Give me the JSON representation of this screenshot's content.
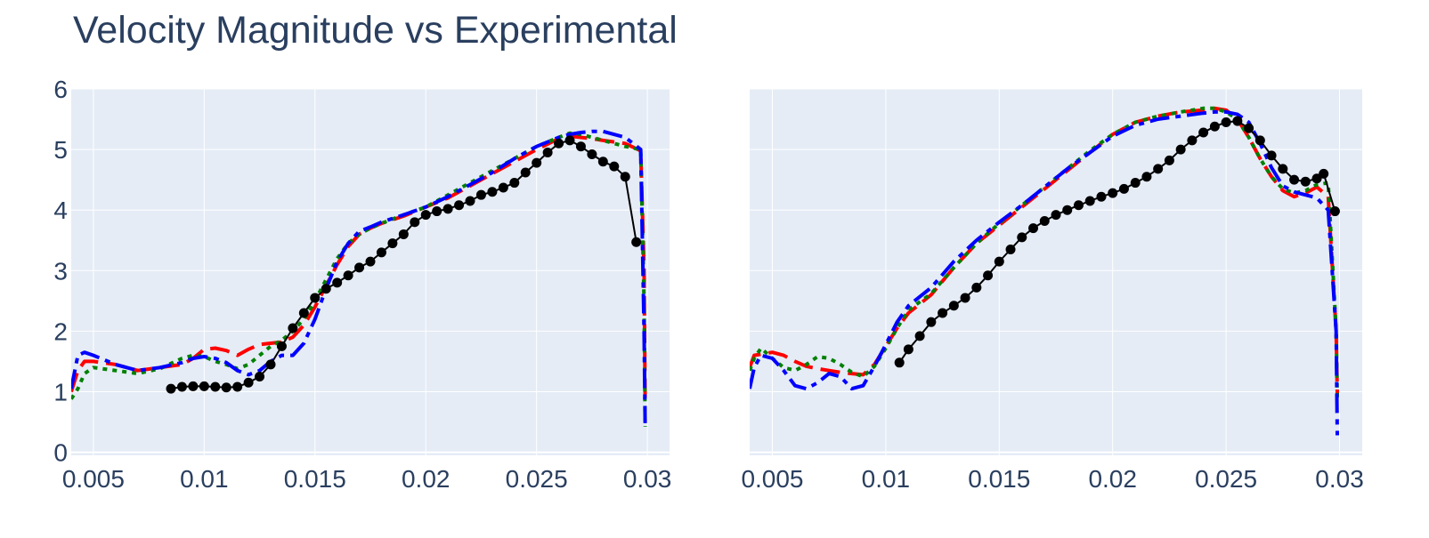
{
  "title": "Velocity Magnitude vs Experimental",
  "colors": {
    "plot_bg": "#e5ecf6",
    "grid": "#ffffff",
    "text": "#2a3f5f",
    "red": "#ff0000",
    "green": "#008000",
    "blue": "#0000ff",
    "black": "#000000"
  },
  "chart_data": [
    {
      "type": "line",
      "panel": "left",
      "title": "",
      "xlabel": "",
      "ylabel": "",
      "xlim": [
        0.004,
        0.031
      ],
      "ylim": [
        -0.05,
        6.0
      ],
      "x_ticks": [
        0.005,
        0.01,
        0.015,
        0.02,
        0.025,
        0.03
      ],
      "x_tick_labels": [
        "0.005",
        "0.01",
        "0.015",
        "0.02",
        "0.025",
        "0.03"
      ],
      "y_ticks": [
        0,
        1,
        2,
        3,
        4,
        5,
        6
      ],
      "y_tick_labels": [
        "0",
        "1",
        "2",
        "3",
        "4",
        "5",
        "6"
      ],
      "grid": true,
      "series": [
        {
          "style": "dash",
          "color": "red",
          "x": [
            0.004,
            0.0043,
            0.0046,
            0.005,
            0.006,
            0.007,
            0.008,
            0.009,
            0.0095,
            0.01,
            0.0105,
            0.011,
            0.0115,
            0.012,
            0.0125,
            0.013,
            0.0135,
            0.014,
            0.0145,
            0.015,
            0.0155,
            0.016,
            0.0165,
            0.017,
            0.0175,
            0.018,
            0.019,
            0.02,
            0.021,
            0.022,
            0.023,
            0.024,
            0.025,
            0.026,
            0.0265,
            0.027,
            0.0275,
            0.028,
            0.029,
            0.0297,
            0.02985,
            0.0299
          ],
          "y": [
            1.0,
            1.35,
            1.5,
            1.5,
            1.45,
            1.35,
            1.4,
            1.45,
            1.55,
            1.7,
            1.72,
            1.68,
            1.6,
            1.7,
            1.78,
            1.8,
            1.82,
            1.9,
            2.1,
            2.4,
            2.75,
            3.1,
            3.4,
            3.6,
            3.7,
            3.78,
            3.9,
            4.05,
            4.2,
            4.4,
            4.6,
            4.8,
            5.0,
            5.18,
            5.22,
            5.2,
            5.18,
            5.15,
            5.1,
            4.98,
            3.0,
            0.9
          ]
        },
        {
          "style": "dot",
          "color": "green",
          "x": [
            0.004,
            0.0043,
            0.0046,
            0.005,
            0.006,
            0.007,
            0.008,
            0.009,
            0.0095,
            0.01,
            0.0105,
            0.011,
            0.0115,
            0.012,
            0.0125,
            0.013,
            0.0135,
            0.014,
            0.0145,
            0.015,
            0.0155,
            0.016,
            0.0165,
            0.017,
            0.0175,
            0.018,
            0.019,
            0.02,
            0.021,
            0.022,
            0.023,
            0.024,
            0.025,
            0.026,
            0.0265,
            0.027,
            0.0275,
            0.028,
            0.029,
            0.0297,
            0.02985,
            0.0299
          ],
          "y": [
            0.88,
            1.05,
            1.3,
            1.4,
            1.35,
            1.3,
            1.38,
            1.55,
            1.6,
            1.58,
            1.5,
            1.45,
            1.38,
            1.45,
            1.6,
            1.75,
            1.85,
            2.0,
            2.2,
            2.5,
            2.85,
            3.2,
            3.45,
            3.6,
            3.7,
            3.78,
            3.92,
            4.05,
            4.25,
            4.45,
            4.65,
            4.85,
            5.05,
            5.2,
            5.27,
            5.25,
            5.2,
            5.15,
            5.05,
            5.0,
            2.5,
            0.42
          ]
        },
        {
          "style": "dashdot",
          "color": "blue",
          "x": [
            0.004,
            0.0043,
            0.0046,
            0.005,
            0.006,
            0.007,
            0.008,
            0.009,
            0.0095,
            0.01,
            0.0105,
            0.011,
            0.0115,
            0.012,
            0.0125,
            0.013,
            0.0135,
            0.014,
            0.0145,
            0.015,
            0.0155,
            0.016,
            0.0165,
            0.017,
            0.0175,
            0.018,
            0.019,
            0.02,
            0.021,
            0.022,
            0.023,
            0.024,
            0.025,
            0.026,
            0.0265,
            0.027,
            0.0275,
            0.028,
            0.029,
            0.0297,
            0.02985,
            0.0299
          ],
          "y": [
            1.05,
            1.6,
            1.65,
            1.6,
            1.45,
            1.35,
            1.4,
            1.48,
            1.55,
            1.58,
            1.55,
            1.48,
            1.35,
            1.28,
            1.35,
            1.5,
            1.6,
            1.6,
            1.8,
            2.2,
            2.7,
            3.15,
            3.45,
            3.65,
            3.72,
            3.8,
            3.92,
            4.05,
            4.22,
            4.42,
            4.62,
            4.85,
            5.05,
            5.2,
            5.25,
            5.28,
            5.3,
            5.3,
            5.2,
            5.0,
            2.0,
            0.48
          ]
        },
        {
          "style": "markers+line",
          "color": "black",
          "x": [
            0.0085,
            0.009,
            0.0095,
            0.01,
            0.0105,
            0.011,
            0.0115,
            0.012,
            0.0125,
            0.013,
            0.0135,
            0.014,
            0.0145,
            0.015,
            0.0155,
            0.016,
            0.0165,
            0.017,
            0.0175,
            0.018,
            0.0185,
            0.019,
            0.0195,
            0.02,
            0.0205,
            0.021,
            0.0215,
            0.022,
            0.0225,
            0.023,
            0.0235,
            0.024,
            0.0245,
            0.025,
            0.0255,
            0.026,
            0.0265,
            0.027,
            0.0275,
            0.028,
            0.0285,
            0.029,
            0.0295
          ],
          "y": [
            1.05,
            1.08,
            1.09,
            1.09,
            1.08,
            1.07,
            1.08,
            1.15,
            1.25,
            1.45,
            1.75,
            2.05,
            2.3,
            2.55,
            2.7,
            2.8,
            2.92,
            3.05,
            3.15,
            3.3,
            3.45,
            3.6,
            3.8,
            3.92,
            3.98,
            4.02,
            4.08,
            4.15,
            4.25,
            4.3,
            4.37,
            4.45,
            4.62,
            4.78,
            4.95,
            5.1,
            5.15,
            5.05,
            4.92,
            4.8,
            4.72,
            4.55,
            3.47
          ]
        }
      ]
    },
    {
      "type": "line",
      "panel": "right",
      "title": "",
      "xlabel": "",
      "ylabel": "",
      "xlim": [
        0.004,
        0.031
      ],
      "ylim": [
        -0.05,
        6.0
      ],
      "x_ticks": [
        0.005,
        0.01,
        0.015,
        0.02,
        0.025,
        0.03
      ],
      "x_tick_labels": [
        "0.005",
        "0.01",
        "0.015",
        "0.02",
        "0.025",
        "0.03"
      ],
      "y_ticks": [
        0,
        1,
        2,
        3,
        4,
        5,
        6
      ],
      "y_tick_labels": [],
      "grid": true,
      "series": [
        {
          "style": "dash",
          "color": "red",
          "x": [
            0.004,
            0.0042,
            0.0045,
            0.005,
            0.0055,
            0.006,
            0.0065,
            0.007,
            0.0075,
            0.008,
            0.0085,
            0.009,
            0.0095,
            0.01,
            0.0105,
            0.011,
            0.012,
            0.013,
            0.014,
            0.015,
            0.016,
            0.017,
            0.018,
            0.019,
            0.02,
            0.021,
            0.022,
            0.023,
            0.024,
            0.0245,
            0.025,
            0.0255,
            0.026,
            0.0265,
            0.027,
            0.0275,
            0.028,
            0.0285,
            0.029,
            0.0295,
            0.02985,
            0.0299
          ],
          "y": [
            1.4,
            1.6,
            1.62,
            1.65,
            1.6,
            1.5,
            1.42,
            1.38,
            1.35,
            1.32,
            1.3,
            1.28,
            1.45,
            1.75,
            2.05,
            2.3,
            2.6,
            3.05,
            3.45,
            3.75,
            4.05,
            4.35,
            4.65,
            4.95,
            5.25,
            5.45,
            5.55,
            5.62,
            5.65,
            5.68,
            5.65,
            5.5,
            5.2,
            4.85,
            4.55,
            4.32,
            4.22,
            4.28,
            4.38,
            4.22,
            2.0,
            0.95
          ]
        },
        {
          "style": "dot",
          "color": "green",
          "x": [
            0.004,
            0.0042,
            0.0045,
            0.005,
            0.0055,
            0.006,
            0.0065,
            0.007,
            0.0075,
            0.008,
            0.0085,
            0.009,
            0.0095,
            0.01,
            0.0105,
            0.011,
            0.012,
            0.013,
            0.014,
            0.015,
            0.016,
            0.017,
            0.018,
            0.019,
            0.02,
            0.021,
            0.022,
            0.023,
            0.024,
            0.0245,
            0.025,
            0.0255,
            0.026,
            0.0265,
            0.027,
            0.0275,
            0.028,
            0.0285,
            0.029,
            0.0295,
            0.02985,
            0.0299
          ],
          "y": [
            1.35,
            1.55,
            1.72,
            1.55,
            1.4,
            1.35,
            1.45,
            1.58,
            1.55,
            1.45,
            1.32,
            1.25,
            1.42,
            1.72,
            2.05,
            2.35,
            2.62,
            3.05,
            3.45,
            3.78,
            4.08,
            4.38,
            4.68,
            4.98,
            5.25,
            5.45,
            5.55,
            5.62,
            5.68,
            5.68,
            5.62,
            5.5,
            5.2,
            4.85,
            4.55,
            4.35,
            4.28,
            4.32,
            4.42,
            4.45,
            2.0,
            0.9
          ]
        },
        {
          "style": "dashdot",
          "color": "blue",
          "x": [
            0.004,
            0.0042,
            0.0045,
            0.005,
            0.0055,
            0.006,
            0.0065,
            0.007,
            0.0075,
            0.008,
            0.0085,
            0.009,
            0.0095,
            0.01,
            0.0105,
            0.011,
            0.012,
            0.013,
            0.014,
            0.015,
            0.016,
            0.017,
            0.018,
            0.019,
            0.02,
            0.021,
            0.022,
            0.023,
            0.024,
            0.0245,
            0.025,
            0.0255,
            0.026,
            0.0265,
            0.027,
            0.0275,
            0.028,
            0.0285,
            0.029,
            0.0295,
            0.02985,
            0.0299
          ],
          "y": [
            1.05,
            1.4,
            1.6,
            1.55,
            1.35,
            1.1,
            1.05,
            1.15,
            1.3,
            1.25,
            1.05,
            1.1,
            1.42,
            1.78,
            2.15,
            2.42,
            2.72,
            3.15,
            3.5,
            3.8,
            4.08,
            4.38,
            4.68,
            4.95,
            5.22,
            5.4,
            5.5,
            5.55,
            5.6,
            5.62,
            5.62,
            5.58,
            5.45,
            5.1,
            4.7,
            4.4,
            4.3,
            4.25,
            4.2,
            4.0,
            2.0,
            0.28
          ]
        },
        {
          "style": "markers+line",
          "color": "black",
          "x": [
            0.0106,
            0.011,
            0.0115,
            0.012,
            0.0125,
            0.013,
            0.0135,
            0.014,
            0.0145,
            0.015,
            0.0155,
            0.016,
            0.0165,
            0.017,
            0.0175,
            0.018,
            0.0185,
            0.019,
            0.0195,
            0.02,
            0.0205,
            0.021,
            0.0215,
            0.022,
            0.0225,
            0.023,
            0.0235,
            0.024,
            0.0245,
            0.025,
            0.0255,
            0.026,
            0.0265,
            0.027,
            0.0275,
            0.028,
            0.0285,
            0.029,
            0.0293,
            0.0298
          ],
          "y": [
            1.48,
            1.7,
            1.92,
            2.15,
            2.3,
            2.42,
            2.55,
            2.72,
            2.92,
            3.15,
            3.35,
            3.55,
            3.7,
            3.82,
            3.92,
            4.0,
            4.08,
            4.15,
            4.22,
            4.28,
            4.35,
            4.45,
            4.55,
            4.68,
            4.82,
            5.0,
            5.15,
            5.28,
            5.38,
            5.45,
            5.47,
            5.35,
            5.15,
            4.9,
            4.68,
            4.5,
            4.47,
            4.52,
            4.6,
            3.98
          ]
        }
      ]
    }
  ]
}
